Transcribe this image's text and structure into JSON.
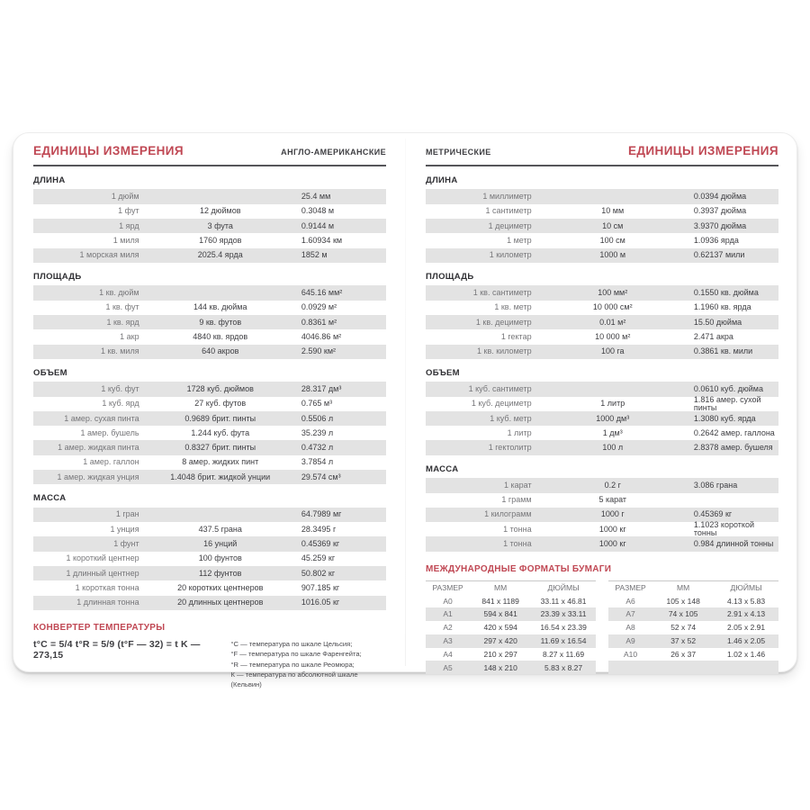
{
  "colors": {
    "accent_red": "#c04854",
    "stripe_gray": "#e3e3e3"
  },
  "left": {
    "title": "ЕДИНИЦЫ ИЗМЕРЕНИЯ",
    "subtitle": "АНГЛО-АМЕРИКАНСКИЕ",
    "sections": [
      {
        "title": "ДЛИНА",
        "rows": [
          [
            "1 дюйм",
            "",
            "25.4 мм"
          ],
          [
            "1 фут",
            "12 дюймов",
            "0.3048 м"
          ],
          [
            "1 ярд",
            "3 фута",
            "0.9144 м"
          ],
          [
            "1 миля",
            "1760 ярдов",
            "1.60934 км"
          ],
          [
            "1 морская миля",
            "2025.4 ярда",
            "1852 м"
          ]
        ]
      },
      {
        "title": "ПЛОЩАДЬ",
        "rows": [
          [
            "1 кв. дюйм",
            "",
            "645.16 мм²"
          ],
          [
            "1 кв. фут",
            "144 кв. дюйма",
            "0.0929 м²"
          ],
          [
            "1 кв. ярд",
            "9 кв. футов",
            "0.8361 м²"
          ],
          [
            "1 акр",
            "4840 кв. ярдов",
            "4046.86 м²"
          ],
          [
            "1 кв. миля",
            "640 акров",
            "2.590 км²"
          ]
        ]
      },
      {
        "title": "ОБЪЕМ",
        "rows": [
          [
            "1 куб. фут",
            "1728 куб. дюймов",
            "28.317 дм³"
          ],
          [
            "1 куб. ярд",
            "27 куб. футов",
            "0.765 м³"
          ],
          [
            "1 амер. сухая пинта",
            "0.9689 брит. пинты",
            "0.5506 л"
          ],
          [
            "1 амер. бушель",
            "1.244 куб. фута",
            "35.239 л"
          ],
          [
            "1 амер. жидкая пинта",
            "0.8327 брит. пинты",
            "0.4732 л"
          ],
          [
            "1 амер. галлон",
            "8 амер. жидких пинт",
            "3.7854 л"
          ],
          [
            "1 амер. жидкая унция",
            "1.4048 брит. жидкой унции",
            "29.574 см³"
          ]
        ]
      },
      {
        "title": "МАССА",
        "rows": [
          [
            "1 гран",
            "",
            "64.7989 мг"
          ],
          [
            "1 унция",
            "437.5 грана",
            "28.3495 г"
          ],
          [
            "1 фунт",
            "16 унций",
            "0.45369 кг"
          ],
          [
            "1 короткий центнер",
            "100 фунтов",
            "45.259 кг"
          ],
          [
            "1 длинный центнер",
            "112 фунтов",
            "50.802 кг"
          ],
          [
            "1 короткая тонна",
            "20 коротких центнеров",
            "907.185 кг"
          ],
          [
            "1 длинная тонна",
            "20 длинных центнеров",
            "1016.05 кг"
          ]
        ]
      }
    ],
    "temp": {
      "title": "КОНВЕРТЕР ТЕМПЕРАТУРЫ",
      "formula": "t°C = 5/4 t°R = 5/9 (t°F — 32) = t K — 273,15",
      "notes": [
        "°C — температура по шкале Цельсия;",
        "°F — температура по шкале Фаренгейта;",
        "°R — температура по шкале Реомюра;",
        "К — температура по абсолютной шкале (Кельвин)"
      ]
    }
  },
  "right": {
    "subtitle": "МЕТРИЧЕСКИЕ",
    "title": "ЕДИНИЦЫ ИЗМЕРЕНИЯ",
    "sections": [
      {
        "title": "ДЛИНА",
        "rows": [
          [
            "1 миллиметр",
            "",
            "0.0394 дюйма"
          ],
          [
            "1 сантиметр",
            "10 мм",
            "0.3937 дюйма"
          ],
          [
            "1 дециметр",
            "10 см",
            "3.9370 дюйма"
          ],
          [
            "1 метр",
            "100 см",
            "1.0936 ярда"
          ],
          [
            "1 километр",
            "1000 м",
            "0.62137 мили"
          ]
        ]
      },
      {
        "title": "ПЛОЩАДЬ",
        "rows": [
          [
            "1 кв. сантиметр",
            "100 мм²",
            "0.1550 кв. дюйма"
          ],
          [
            "1 кв. метр",
            "10 000 см²",
            "1.1960 кв. ярда"
          ],
          [
            "1 кв. дециметр",
            "0.01 м²",
            "15.50 дюйма"
          ],
          [
            "1 гектар",
            "10 000 м²",
            "2.471 акра"
          ],
          [
            "1 кв. километр",
            "100 га",
            "0.3861 кв. мили"
          ]
        ]
      },
      {
        "title": "ОБЪЕМ",
        "rows": [
          [
            "1 куб. сантиметр",
            "",
            "0.0610 куб. дюйма"
          ],
          [
            "1 куб. дециметр",
            "1 литр",
            "1.816 амер. сухой пинты"
          ],
          [
            "1 куб. метр",
            "1000 дм³",
            "1.3080 куб. ярда"
          ],
          [
            "1 литр",
            "1 дм³",
            "0.2642 амер. галлона"
          ],
          [
            "1 гектолитр",
            "100 л",
            "2.8378 амер. бушеля"
          ]
        ]
      },
      {
        "title": "МАССА",
        "rows": [
          [
            "1 карат",
            "0.2 г",
            "3.086 грана"
          ],
          [
            "1 грамм",
            "5 карат",
            ""
          ],
          [
            "1 килограмм",
            "1000 г",
            "0.45369 кг"
          ],
          [
            "1 тонна",
            "1000 кг",
            "1.1023 короткой тонны"
          ],
          [
            "1 тонна",
            "1000 кг",
            "0.984 длинной тонны"
          ]
        ]
      }
    ],
    "paper": {
      "title": "МЕЖДУНАРОДНЫЕ ФОРМАТЫ БУМАГИ",
      "headers": [
        "РАЗМЕР",
        "ММ",
        "ДЮЙМЫ"
      ],
      "table1": [
        [
          "A0",
          "841 x 1189",
          "33.11 x 46.81"
        ],
        [
          "A1",
          "594 x 841",
          "23.39 x 33.11"
        ],
        [
          "A2",
          "420 x 594",
          "16.54 x 23.39"
        ],
        [
          "A3",
          "297 x 420",
          "11.69 x 16.54"
        ],
        [
          "A4",
          "210 x 297",
          "8.27 x 11.69"
        ],
        [
          "A5",
          "148 x 210",
          "5.83 x 8.27"
        ]
      ],
      "table2": [
        [
          "A6",
          "105 x 148",
          "4.13 x 5.83"
        ],
        [
          "A7",
          "74 x 105",
          "2.91 x 4.13"
        ],
        [
          "A8",
          "52 x 74",
          "2.05 x 2.91"
        ],
        [
          "A9",
          "37 x 52",
          "1.46 x 2.05"
        ],
        [
          "A10",
          "26 x 37",
          "1.02 x 1.46"
        ],
        [
          "",
          "",
          ""
        ]
      ]
    }
  }
}
